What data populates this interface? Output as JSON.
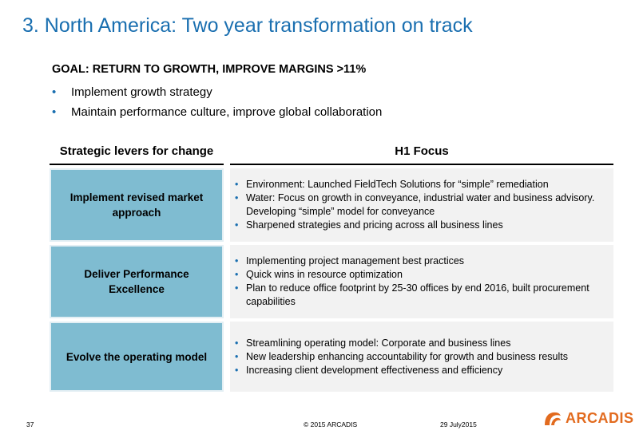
{
  "slide": {
    "title": "3. North America: Two year transformation on track",
    "goal": "GOAL: RETURN TO GROWTH, IMPROVE MARGINS >11%",
    "goal_bullets": [
      "Implement growth strategy",
      "Maintain performance culture, improve global collaboration"
    ]
  },
  "table": {
    "headers": {
      "left": "Strategic levers for change",
      "right": "H1 Focus"
    },
    "rows": [
      {
        "lever": "Implement revised market approach",
        "focus": [
          "Environment: Launched FieldTech Solutions for “simple” remediation",
          "Water: Focus on growth in conveyance, industrial water and business advisory. Developing “simple” model for conveyance",
          "Sharpened strategies and pricing across all business lines"
        ]
      },
      {
        "lever": "Deliver Performance Excellence",
        "focus": [
          "Implementing project management best practices",
          "Quick wins in resource optimization",
          "Plan to reduce office footprint by 25-30 offices by end 2016, built procurement capabilities"
        ]
      },
      {
        "lever": "Evolve the operating model",
        "focus": [
          "Streamlining operating model: Corporate and business lines",
          "New leadership enhancing accountability for growth and business results",
          "Increasing client development effectiveness and efficiency"
        ]
      }
    ]
  },
  "footer": {
    "page_number": "37",
    "copyright": "© 2015 ARCADIS",
    "date": "29 July2015"
  },
  "logo": {
    "text": "ARCADIS",
    "icon": "arcadis-logo-icon",
    "color": "#e26b1f"
  },
  "colors": {
    "title": "#1a6fb0",
    "lever_fill": "#7fbcd1",
    "focus_fill": "#f2f2f2",
    "bullet": "#1a6fb0"
  }
}
